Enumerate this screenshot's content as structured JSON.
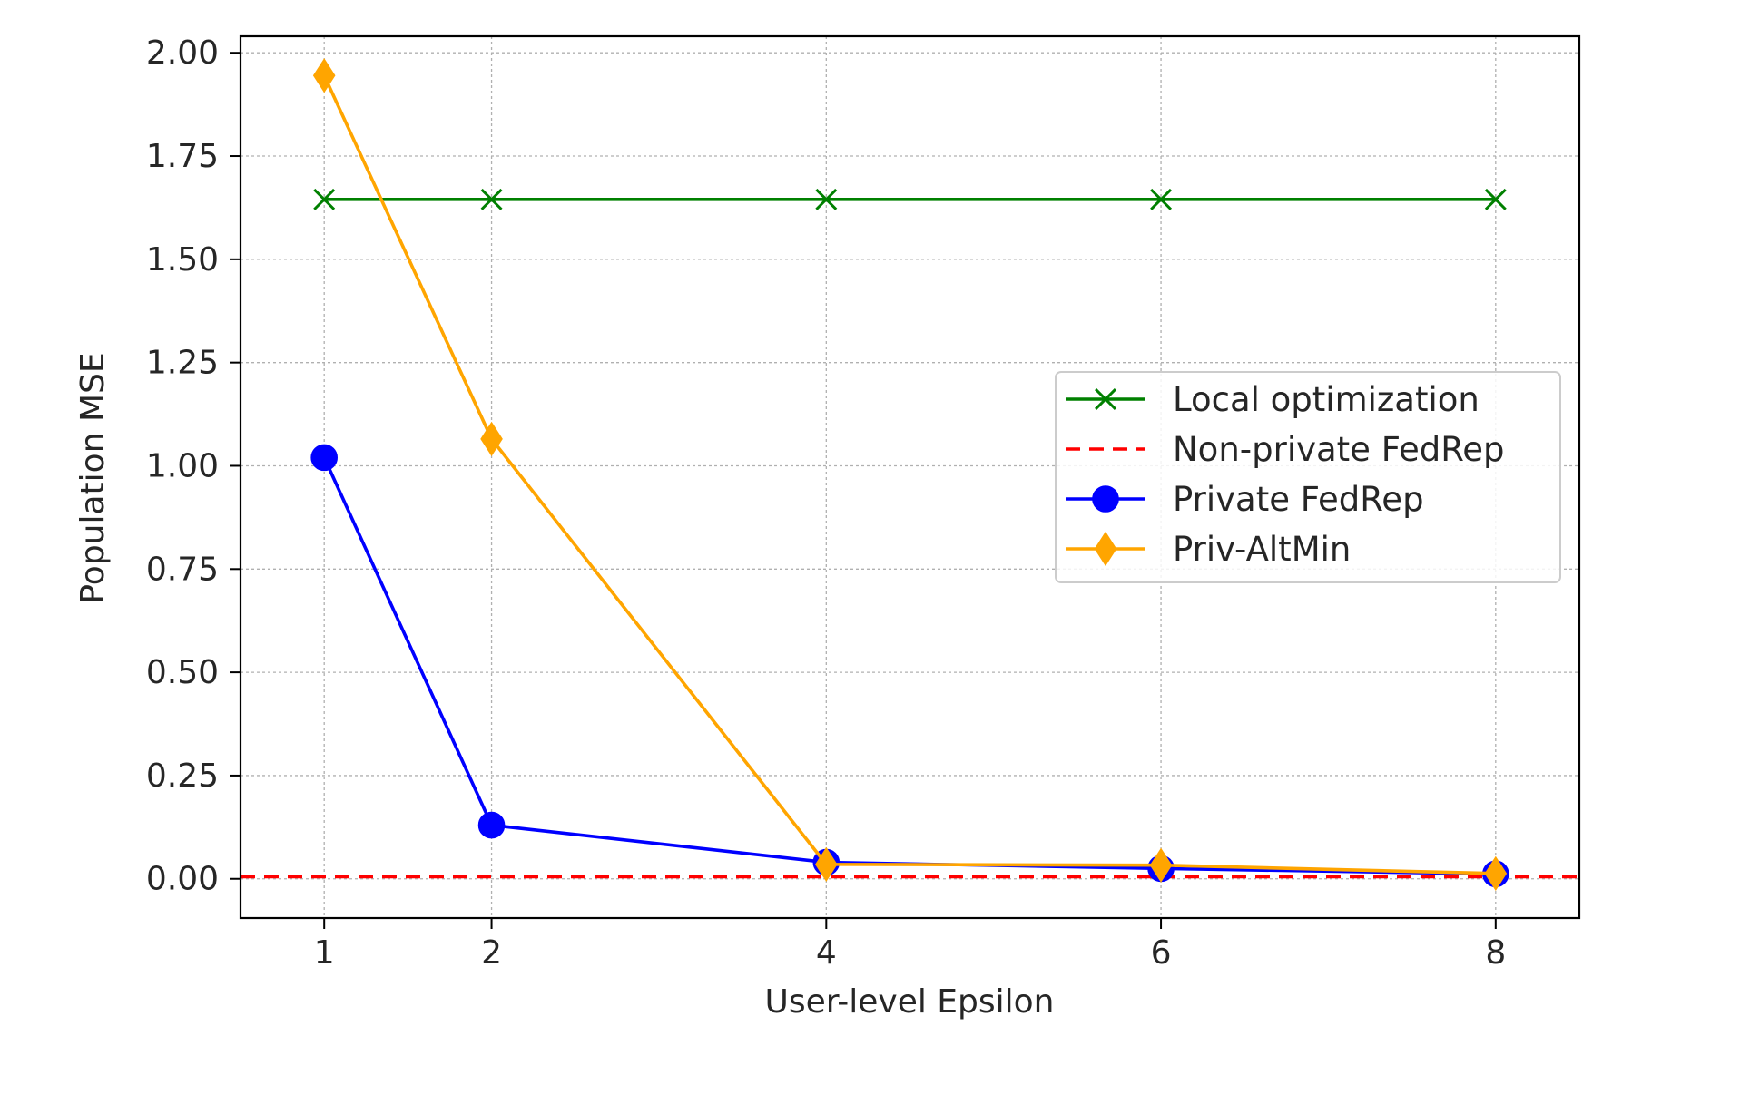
{
  "chart_data": {
    "type": "line",
    "title": "",
    "xlabel": "User-level Epsilon",
    "ylabel": "Population MSE",
    "x": [
      1,
      2,
      4,
      6,
      8
    ],
    "xlim": [
      0.5,
      8.5
    ],
    "ylim": [
      -0.095,
      2.04
    ],
    "xticks": [
      1,
      2,
      4,
      6,
      8
    ],
    "yticks": [
      "0.00",
      "0.25",
      "0.50",
      "0.75",
      "1.00",
      "1.25",
      "1.50",
      "1.75",
      "2.00"
    ],
    "grid": true,
    "legend_position": "center-right",
    "series": [
      {
        "name": "Local optimization",
        "values": [
          1.645,
          1.645,
          1.645,
          1.645,
          1.645
        ],
        "color": "#008000",
        "line_style": "solid",
        "marker": "x"
      },
      {
        "name": "Non-private FedRep",
        "values": [
          0.005,
          0.005,
          0.005,
          0.005,
          0.005
        ],
        "color": "#ff0000",
        "line_style": "dashed",
        "marker": "none"
      },
      {
        "name": "Private FedRep",
        "values": [
          1.02,
          0.13,
          0.04,
          0.025,
          0.012
        ],
        "color": "#0000ff",
        "line_style": "solid",
        "marker": "circle"
      },
      {
        "name": "Priv-AltMin",
        "values": [
          1.945,
          1.065,
          0.035,
          0.033,
          0.013
        ],
        "color": "#ffa500",
        "line_style": "solid",
        "marker": "diamond"
      }
    ]
  }
}
